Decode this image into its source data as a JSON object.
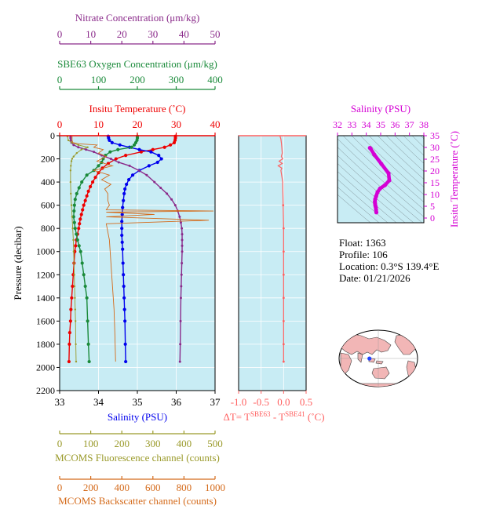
{
  "float_info": {
    "float": "Float:  1363",
    "profile": "Profile:  106",
    "location": "Location:  0.3°S  139.4°E",
    "date": "Date:  01/21/2026"
  },
  "colors": {
    "nitrate": "#8a2a8a",
    "oxygen": "#1a8a3a",
    "temperature": "#ee0000",
    "salinity": "#0000ee",
    "fluorescence": "#9a9a2a",
    "backscatter": "#d46a1a",
    "delta_t": "#ff6060",
    "ts_salinity": "#d400d4",
    "plot_bg": "#c8ecf4"
  },
  "chart_data": [
    {
      "type": "line",
      "title": "",
      "ylabel": "Pressure (decibar)",
      "ylim": [
        2200,
        0
      ],
      "yticks": [
        0,
        200,
        400,
        600,
        800,
        1000,
        1200,
        1400,
        1600,
        1800,
        2000,
        2200
      ],
      "axes": {
        "nitrate": {
          "label": "Nitrate Concentration (μm/kg)",
          "range": [
            0,
            50
          ],
          "ticks": [
            0,
            10,
            20,
            30,
            40,
            50
          ]
        },
        "oxygen": {
          "label": "SBE63 Oxygen Concentration (μm/kg)",
          "range": [
            0,
            400
          ],
          "ticks": [
            0,
            100,
            200,
            300,
            400
          ]
        },
        "temperature": {
          "label": "Insitu Temperature (˚C)",
          "range": [
            0,
            40
          ],
          "ticks": [
            0,
            10,
            20,
            30,
            40
          ]
        },
        "salinity": {
          "label": "Salinity (PSU)",
          "range": [
            33,
            37
          ],
          "ticks": [
            33,
            34,
            35,
            36,
            37
          ]
        },
        "fluorescence": {
          "label": "MCOMS Fluorescence channel (counts)",
          "range": [
            0,
            500
          ],
          "ticks": [
            0,
            100,
            200,
            300,
            400,
            500
          ]
        },
        "backscatter": {
          "label": "MCOMS Backscatter channel (counts)",
          "range": [
            0,
            1000
          ],
          "ticks": [
            0,
            200,
            400,
            600,
            800,
            1000
          ]
        }
      },
      "series": [
        {
          "key": "temperature",
          "x": [
            29.8,
            29.8,
            29.7,
            29.5,
            28.5,
            27.0,
            24.0,
            21.0,
            17.0,
            14.5,
            12.5,
            11.0,
            10.0,
            9.2,
            8.5,
            7.9,
            7.4,
            7.0,
            6.6,
            6.2,
            5.9,
            5.6,
            5.3,
            5.1,
            4.9,
            4.6,
            4.3,
            4.1,
            3.9,
            3.7,
            3.5,
            3.3,
            3.1,
            2.9,
            2.8,
            2.6,
            2.5,
            2.4
          ],
          "y": [
            5,
            20,
            40,
            60,
            80,
            100,
            120,
            140,
            170,
            200,
            240,
            280,
            320,
            360,
            400,
            440,
            480,
            520,
            560,
            600,
            640,
            680,
            720,
            760,
            800,
            850,
            900,
            950,
            1000,
            1100,
            1200,
            1300,
            1400,
            1500,
            1600,
            1700,
            1800,
            1950
          ]
        },
        {
          "key": "salinity",
          "x": [
            34.25,
            34.26,
            34.28,
            34.35,
            34.55,
            34.8,
            35.05,
            35.35,
            35.55,
            35.62,
            35.52,
            35.3,
            35.05,
            34.88,
            34.78,
            34.72,
            34.68,
            34.66,
            34.64,
            34.62,
            34.61,
            34.6,
            34.6,
            34.6,
            34.61,
            34.62,
            34.63,
            34.64,
            34.65,
            34.66,
            34.67,
            34.68,
            34.69,
            34.7
          ],
          "y": [
            5,
            20,
            40,
            60,
            80,
            100,
            120,
            140,
            170,
            200,
            230,
            260,
            300,
            340,
            380,
            420,
            460,
            500,
            560,
            620,
            680,
            740,
            800,
            860,
            920,
            980,
            1100,
            1200,
            1300,
            1400,
            1500,
            1600,
            1800,
            1950
          ]
        },
        {
          "key": "oxygen",
          "x": [
            200,
            200,
            199,
            196,
            192,
            185,
            150,
            130,
            118,
            112,
            108,
            100,
            88,
            70,
            57,
            50,
            44,
            40,
            38,
            37,
            36,
            38,
            40,
            43,
            46,
            50,
            54,
            58,
            62,
            66,
            70,
            72,
            74,
            76
          ],
          "y": [
            5,
            20,
            40,
            60,
            80,
            100,
            120,
            140,
            170,
            200,
            230,
            260,
            300,
            340,
            400,
            450,
            500,
            550,
            600,
            650,
            700,
            750,
            800,
            850,
            900,
            950,
            1000,
            1100,
            1200,
            1300,
            1400,
            1600,
            1800,
            1950
          ]
        },
        {
          "key": "nitrate",
          "x": [
            3.5,
            3.5,
            3.6,
            3.8,
            4.5,
            6.0,
            8.5,
            11.0,
            13.5,
            16.5,
            19.0,
            22.5,
            25.5,
            28.0,
            30.5,
            32.5,
            34.5,
            36.0,
            37.2,
            38.0,
            38.6,
            39.0,
            39.3,
            39.4,
            39.4,
            39.4,
            39.4,
            39.3,
            39.2,
            39.1,
            39.0,
            38.9,
            38.8,
            38.7
          ],
          "y": [
            5,
            20,
            40,
            60,
            80,
            100,
            120,
            140,
            170,
            200,
            230,
            260,
            300,
            340,
            400,
            450,
            500,
            550,
            600,
            650,
            700,
            750,
            800,
            850,
            900,
            950,
            1000,
            1100,
            1200,
            1300,
            1400,
            1600,
            1800,
            1950
          ]
        },
        {
          "key": "fluorescence",
          "x": [
            25,
            28,
            40,
            60,
            90,
            70,
            55,
            45,
            40,
            38,
            36,
            35,
            35,
            36,
            38,
            40,
            42,
            44,
            45,
            46,
            47,
            48,
            49,
            50,
            51,
            52,
            53
          ],
          "y": [
            5,
            40,
            60,
            80,
            100,
            120,
            150,
            180,
            200,
            220,
            260,
            300,
            400,
            500,
            600,
            700,
            800,
            900,
            1000,
            1100,
            1200,
            1300,
            1400,
            1500,
            1600,
            1800,
            1950
          ]
        },
        {
          "key": "backscatter",
          "x": [
            80,
            80,
            85,
            120,
            240,
            220,
            280,
            250,
            300,
            240,
            340,
            220,
            320,
            270,
            330,
            290,
            310,
            310,
            320,
            310,
            300,
            990,
            300,
            610,
            300,
            960,
            300,
            320,
            330,
            340,
            350,
            355,
            360
          ],
          "y": [
            5,
            40,
            60,
            70,
            80,
            100,
            120,
            150,
            180,
            220,
            260,
            300,
            340,
            380,
            420,
            460,
            500,
            560,
            600,
            620,
            640,
            650,
            660,
            680,
            700,
            730,
            760,
            900,
            1100,
            1300,
            1500,
            1700,
            1950
          ]
        }
      ]
    },
    {
      "type": "line",
      "title": "",
      "xlabel": "ΔT= Tˢᴮᴱ⁶³ - Tˢᴮᴱ⁴¹ (˚C)",
      "xlabel_parts": {
        "pre": "ΔT= T",
        "sup1": "SBE63",
        "mid": " - T",
        "sup2": "SBE41",
        "post": " (˚C)"
      },
      "xlim": [
        -1.0,
        0.5
      ],
      "xticks": [
        -1.0,
        -0.5,
        0.0,
        0.5
      ],
      "xtick_labels": [
        "-1.0",
        "-0.5",
        "0.0",
        "0.5"
      ],
      "ylim": [
        2200,
        0
      ],
      "series": [
        {
          "key": "delta_t",
          "x": [
            -0.08,
            -0.06,
            -0.05,
            -0.04,
            -0.03,
            -0.05,
            -0.02,
            -0.1,
            -0.03,
            -0.12,
            -0.04,
            -0.06,
            -0.02,
            -0.01,
            0.0,
            0.0,
            0.0,
            0.0,
            0.0,
            0.0,
            0.0
          ],
          "y": [
            5,
            30,
            60,
            100,
            150,
            180,
            200,
            220,
            240,
            260,
            280,
            300,
            400,
            600,
            800,
            1000,
            1200,
            1400,
            1600,
            1800,
            1950
          ]
        }
      ]
    },
    {
      "type": "scatter",
      "title": "",
      "xlabel": "Salinity (PSU)",
      "ylabel": "Insitu Temperature (˚C)",
      "xlim": [
        32,
        38
      ],
      "ylim": [
        -2,
        35
      ],
      "xticks": [
        32,
        33,
        34,
        35,
        36,
        37,
        38
      ],
      "yticks": [
        0,
        5,
        10,
        15,
        20,
        25,
        30,
        35
      ],
      "series": [
        {
          "key": "ts_salinity",
          "x": [
            34.25,
            34.3,
            34.55,
            35.05,
            35.55,
            35.6,
            35.3,
            34.95,
            34.78,
            34.68,
            34.62,
            34.6,
            34.61,
            34.63,
            34.66,
            34.68,
            34.7
          ],
          "y": [
            29.8,
            29.5,
            27.0,
            23.0,
            19.0,
            16.0,
            14.0,
            12.5,
            11.0,
            9.2,
            8.0,
            7.0,
            6.2,
            5.3,
            4.6,
            3.5,
            2.4
          ]
        }
      ]
    }
  ],
  "map": {
    "marker_lon": 139.4,
    "marker_lat": -0.3
  }
}
